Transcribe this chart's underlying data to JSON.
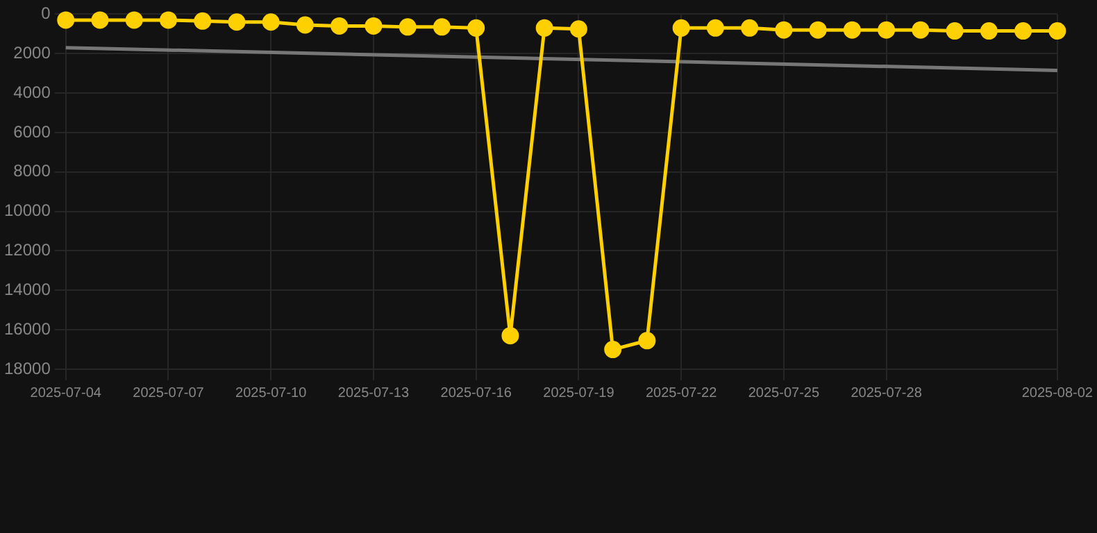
{
  "chart_data": {
    "type": "line",
    "x": [
      "2025-07-04",
      "2025-07-05",
      "2025-07-06",
      "2025-07-07",
      "2025-07-08",
      "2025-07-09",
      "2025-07-10",
      "2025-07-11",
      "2025-07-12",
      "2025-07-13",
      "2025-07-14",
      "2025-07-15",
      "2025-07-16",
      "2025-07-17",
      "2025-07-18",
      "2025-07-19",
      "2025-07-20",
      "2025-07-21",
      "2025-07-22",
      "2025-07-23",
      "2025-07-24",
      "2025-07-25",
      "2025-07-26",
      "2025-07-27",
      "2025-07-28",
      "2025-07-29",
      "2025-07-30",
      "2025-07-31",
      "2025-08-01",
      "2025-08-02"
    ],
    "series": [
      {
        "color": "#ffd000",
        "marker": "circle",
        "line_style": "solid",
        "values": [
          300,
          300,
          300,
          300,
          350,
          400,
          400,
          550,
          600,
          600,
          650,
          650,
          700,
          16300,
          700,
          750,
          17000,
          16550,
          700,
          700,
          700,
          800,
          800,
          800,
          800,
          800,
          850,
          850,
          850,
          850
        ]
      },
      {
        "color": "#777777",
        "marker": "none",
        "line_style": "solid",
        "x": [
          "2025-07-04",
          "2025-08-02"
        ],
        "values": [
          1700,
          2850
        ]
      }
    ],
    "xlim": [
      "2025-07-04",
      "2025-08-02"
    ],
    "xticks": [
      "2025-07-04",
      "2025-07-07",
      "2025-07-10",
      "2025-07-13",
      "2025-07-16",
      "2025-07-19",
      "2025-07-22",
      "2025-07-25",
      "2025-07-28",
      "2025-08-02"
    ],
    "ylim": [
      18000,
      0
    ],
    "yticks": [
      0,
      2000,
      4000,
      6000,
      8000,
      10000,
      12000,
      14000,
      16000,
      18000
    ],
    "grid": true,
    "legend": false
  }
}
